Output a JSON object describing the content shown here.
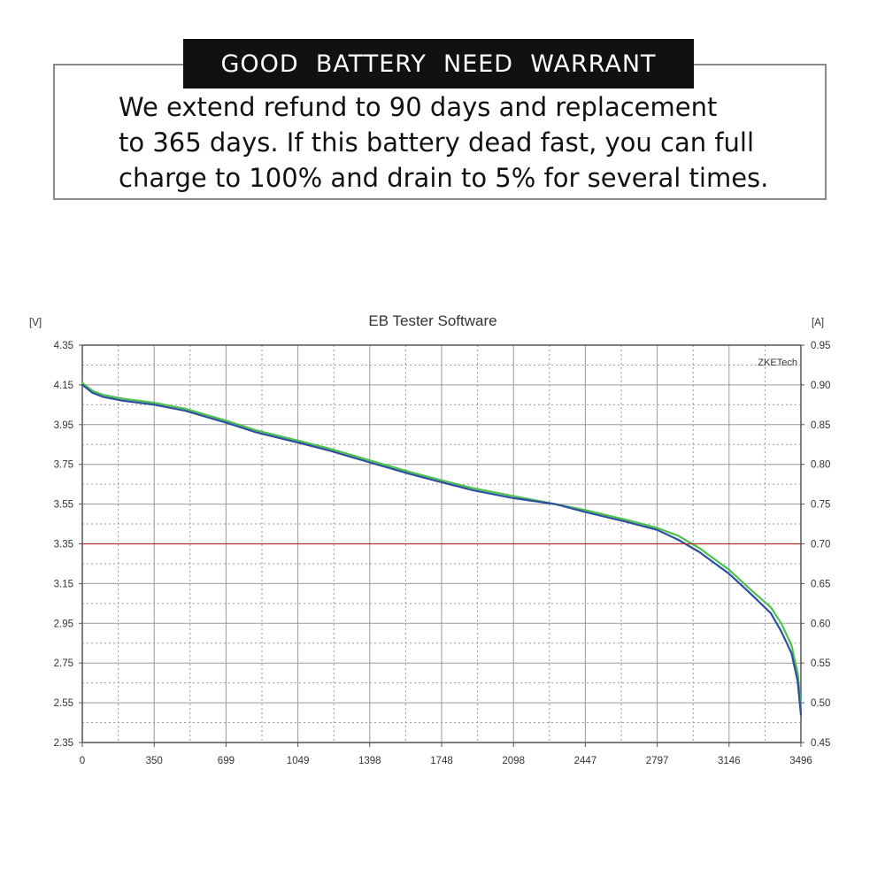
{
  "banner": {
    "title": "GOOD  BATTERY  NEED  WARRANT"
  },
  "warranty": {
    "lines": [
      "We extend refund to 90 days and replacement",
      "to 365 days. If this battery dead fast, you can full",
      "charge to 100% and drain to 5% for several times."
    ]
  },
  "chart_data": {
    "type": "line",
    "title": "EB Tester Software",
    "watermark": "ZKETech",
    "ylabel": "[V]",
    "y2label": "[A]",
    "xlim": [
      0,
      3496
    ],
    "ylim": [
      2.35,
      4.35
    ],
    "y2lim": [
      0.45,
      0.95
    ],
    "x_ticks": [
      "0",
      "350",
      "699",
      "1049",
      "1398",
      "1748",
      "2098",
      "2447",
      "2797",
      "3146",
      "3496"
    ],
    "y_ticks": [
      "4.35",
      "4.15",
      "3.95",
      "3.75",
      "3.55",
      "3.35",
      "3.15",
      "2.95",
      "2.75",
      "2.55",
      "2.35"
    ],
    "y2_ticks": [
      "0.95",
      "0.90",
      "0.85",
      "0.80",
      "0.75",
      "0.70",
      "0.65",
      "0.60",
      "0.55",
      "0.50",
      "0.45"
    ],
    "grid": true,
    "colors": {
      "plot_border": "#555555",
      "grid_major": "#9a9a9a",
      "grid_minor": "#9a9a9a",
      "current_line": "#b03030",
      "series_green": "#4cc24c",
      "series_blue": "#2e4fa0"
    },
    "series": [
      {
        "color": "#4cc24c",
        "x": [
          0,
          50,
          100,
          200,
          350,
          500,
          699,
          850,
          1049,
          1200,
          1398,
          1600,
          1748,
          1900,
          2098,
          2300,
          2447,
          2650,
          2797,
          2900,
          3000,
          3146,
          3250,
          3350,
          3400,
          3450,
          3480,
          3496
        ],
        "y": [
          4.16,
          4.12,
          4.1,
          4.08,
          4.06,
          4.03,
          3.97,
          3.92,
          3.87,
          3.83,
          3.77,
          3.71,
          3.67,
          3.63,
          3.59,
          3.55,
          3.52,
          3.47,
          3.43,
          3.39,
          3.33,
          3.22,
          3.12,
          3.03,
          2.95,
          2.84,
          2.7,
          2.53
        ]
      },
      {
        "color": "#2e4fa0",
        "x": [
          0,
          50,
          100,
          200,
          350,
          500,
          699,
          850,
          1049,
          1200,
          1398,
          1600,
          1748,
          1900,
          2098,
          2300,
          2447,
          2650,
          2797,
          2900,
          3000,
          3146,
          3250,
          3350,
          3400,
          3450,
          3480,
          3496
        ],
        "y": [
          4.15,
          4.11,
          4.09,
          4.07,
          4.05,
          4.02,
          3.96,
          3.91,
          3.86,
          3.82,
          3.76,
          3.7,
          3.66,
          3.62,
          3.58,
          3.55,
          3.51,
          3.46,
          3.42,
          3.37,
          3.31,
          3.2,
          3.1,
          3.0,
          2.91,
          2.8,
          2.66,
          2.49
        ]
      },
      {
        "color": "#b03030",
        "x": [
          0,
          3496
        ],
        "y": [
          3.35,
          3.35
        ]
      }
    ]
  }
}
